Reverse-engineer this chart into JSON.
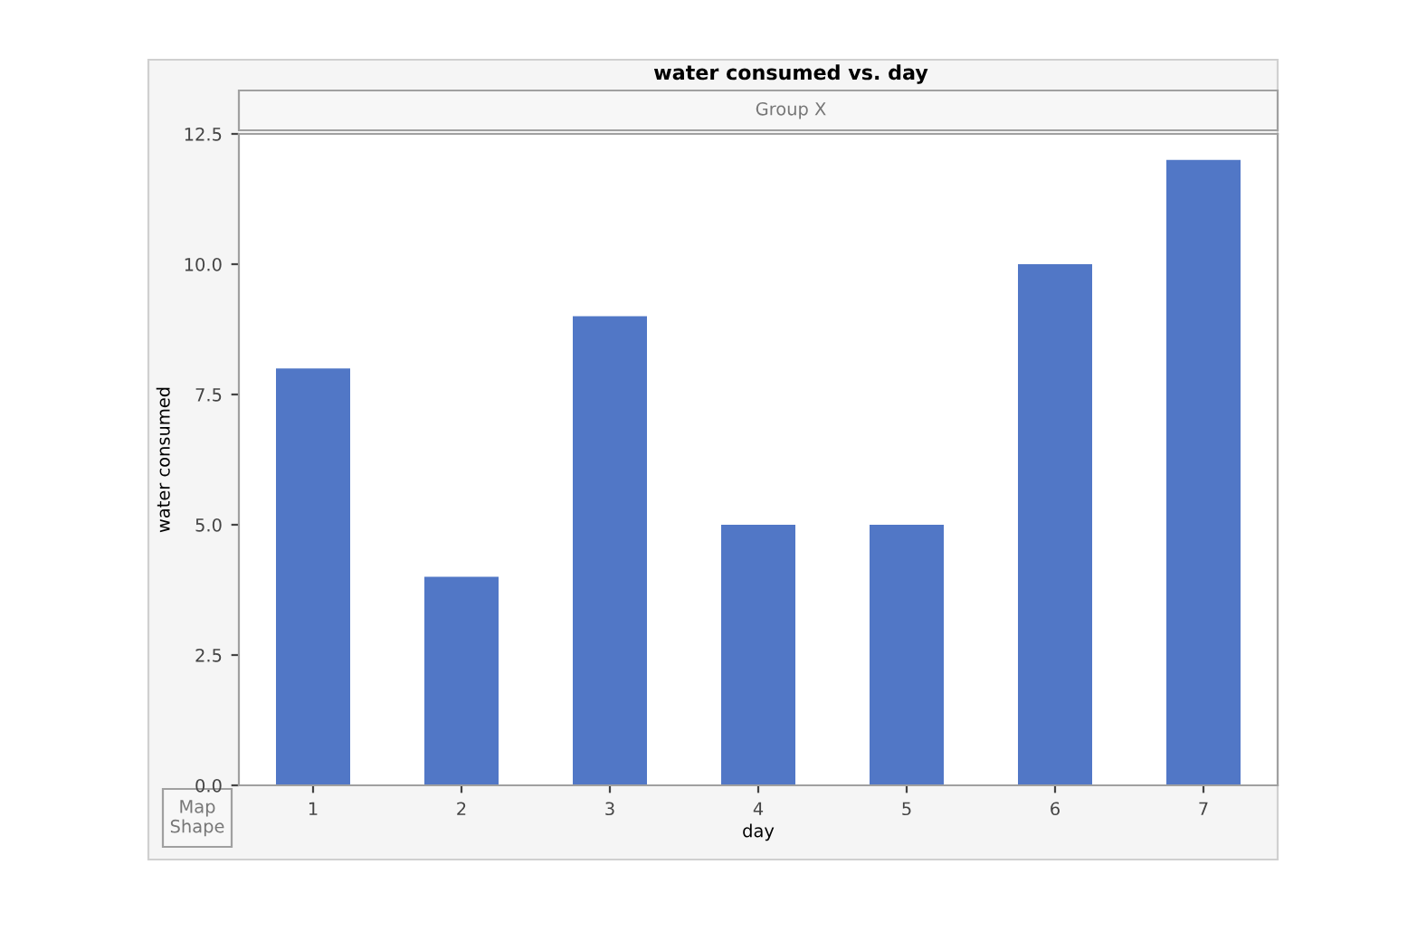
{
  "chart_data": {
    "type": "bar",
    "title": "water consumed vs. day",
    "xlabel": "day",
    "ylabel": "water consumed",
    "categories": [
      "1",
      "2",
      "3",
      "4",
      "5",
      "6",
      "7"
    ],
    "values": [
      8,
      4,
      9,
      5,
      5,
      10,
      12
    ],
    "color": "#5177c6",
    "ylim": [
      0,
      12.5
    ],
    "yticks": [
      {
        "value": 0,
        "label": "0.0"
      },
      {
        "value": 2.5,
        "label": "2.5"
      },
      {
        "value": 5,
        "label": "5.0"
      },
      {
        "value": 7.5,
        "label": "7.5"
      },
      {
        "value": 10,
        "label": "10.0"
      },
      {
        "value": 12.5,
        "label": "12.5"
      }
    ],
    "grid": false,
    "legend": false,
    "annotations": [
      "Group X",
      "Map Shape"
    ]
  }
}
